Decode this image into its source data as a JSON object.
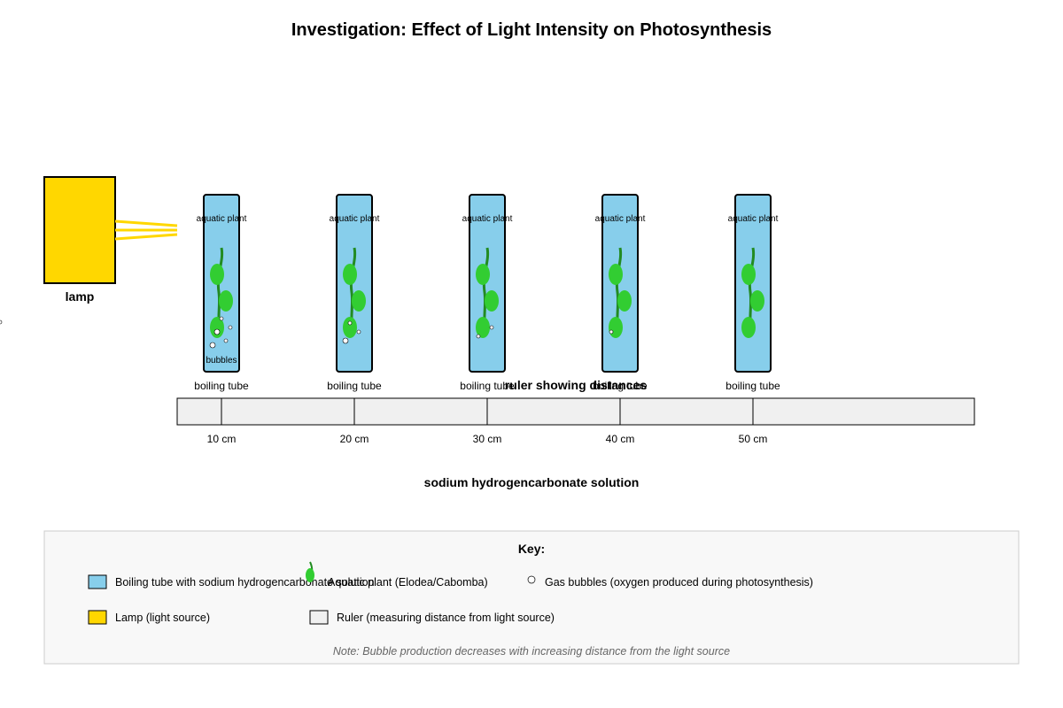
{
  "title": "Investigation: Effect of Light Intensity on Photosynthesis",
  "lamp": {
    "label": "lamp",
    "color": "#FFD700",
    "ray_color": "#FFD700"
  },
  "tubes": [
    {
      "label": "boiling tube",
      "plant_label": "aquatic plant",
      "bubble_label": "bubbles",
      "bubble_count": 5
    },
    {
      "label": "boiling tube",
      "plant_label": "aquatic plant",
      "bubble_count": 3
    },
    {
      "label": "boiling tube",
      "plant_label": "aquatic plant",
      "bubble_count": 2
    },
    {
      "label": "boiling tube",
      "plant_label": "aquatic plant",
      "bubble_count": 1
    },
    {
      "label": "boiling tube",
      "plant_label": "aquatic plant",
      "bubble_count": 0
    }
  ],
  "ruler": {
    "title": "ruler showing distances",
    "ticks": [
      "10 cm",
      "20 cm",
      "30 cm",
      "40 cm",
      "50 cm"
    ]
  },
  "solution_label": "sodium hydrogencarbonate solution",
  "colors": {
    "tube_fill": "#87CEEB",
    "plant_leaf": "#32CD32",
    "plant_stem": "#228B22",
    "ruler_fill": "#F0F0F0",
    "key_bg": "#F8F8F8"
  },
  "key": {
    "title": "Key:",
    "items": [
      {
        "icon": "tube-swatch-icon",
        "text": "Boiling tube with sodium hydrogencarbonate solution"
      },
      {
        "icon": "plant-icon",
        "text": "Aquatic plant (Elodea/Cabomba)"
      },
      {
        "icon": "bubble-icon",
        "text": "Gas bubbles (oxygen produced during photosynthesis)"
      },
      {
        "icon": "lamp-swatch-icon",
        "text": "Lamp (light source)"
      },
      {
        "icon": "ruler-swatch-icon",
        "text": "Ruler (measuring distance from light source)"
      }
    ],
    "note": "Note: Bubble production decreases with increasing distance from the light source"
  }
}
